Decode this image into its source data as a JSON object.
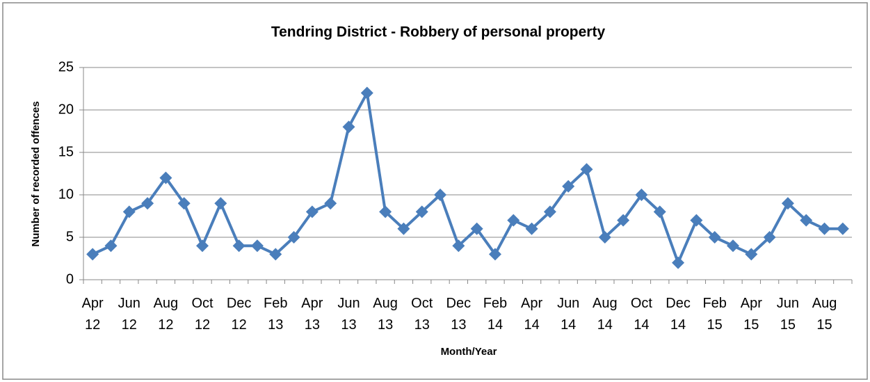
{
  "chart_data": {
    "type": "line",
    "title": "Tendring District - Robbery of personal property",
    "x_label": "Month/Year",
    "y_label": "Number of recorded offences",
    "categories": [
      "Apr 12",
      null,
      "Jun 12",
      null,
      "Aug 12",
      null,
      "Oct 12",
      null,
      "Dec 12",
      null,
      "Feb 13",
      null,
      "Apr 13",
      null,
      "Jun 13",
      null,
      "Aug 13",
      null,
      "Oct 13",
      null,
      "Dec 13",
      null,
      "Feb 14",
      null,
      "Apr 14",
      null,
      "Jun 14",
      null,
      "Aug 14",
      null,
      "Oct 14",
      null,
      "Dec 14",
      null,
      "Feb 15",
      null,
      "Apr 15",
      null,
      "Jun 15",
      null,
      "Aug 15",
      null
    ],
    "series": [
      {
        "name": "Robbery of personal property",
        "color": "#4a7ebb",
        "values": [
          3,
          4,
          8,
          9,
          12,
          9,
          4,
          9,
          4,
          4,
          3,
          5,
          8,
          9,
          18,
          22,
          8,
          6,
          8,
          10,
          4,
          6,
          3,
          7,
          6,
          8,
          11,
          13,
          5,
          7,
          10,
          8,
          2,
          7,
          5,
          4,
          3,
          5,
          9,
          7,
          6,
          6
        ]
      }
    ],
    "ylim": [
      0,
      25
    ],
    "yticks": [
      0,
      5,
      10,
      15,
      20,
      25
    ],
    "grid": true
  }
}
